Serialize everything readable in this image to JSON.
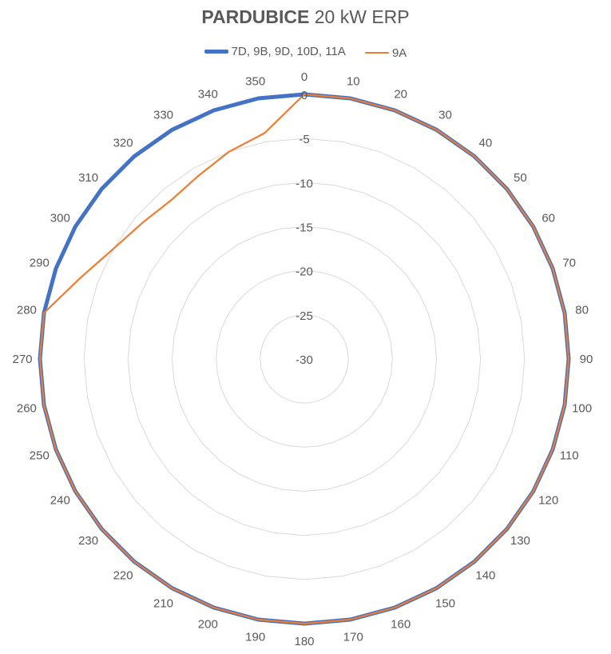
{
  "chart_data": {
    "type": "radar",
    "title_bold": "PARDUBICE",
    "title_rest": " 20 kW ERP",
    "angles": [
      0,
      10,
      20,
      30,
      40,
      50,
      60,
      70,
      80,
      90,
      100,
      110,
      120,
      130,
      140,
      150,
      160,
      170,
      180,
      190,
      200,
      210,
      220,
      230,
      240,
      250,
      260,
      270,
      280,
      290,
      300,
      310,
      320,
      330,
      340,
      350
    ],
    "radial_ticks": [
      0,
      -5,
      -10,
      -15,
      -20,
      -25,
      -30
    ],
    "rlim": [
      -30,
      0
    ],
    "grid": true,
    "legend_position": "top",
    "series": [
      {
        "name": "7D, 9B, 9D, 10D, 11A",
        "color": "#4472C4",
        "values": [
          0,
          0,
          0,
          0,
          0,
          0,
          0,
          0,
          0,
          0,
          0,
          0,
          0,
          0,
          0,
          0,
          0,
          0,
          0,
          0,
          0,
          0,
          0,
          0,
          0,
          0,
          0,
          0,
          0,
          0,
          0,
          0,
          0,
          0,
          0,
          0
        ]
      },
      {
        "name": "9A",
        "color": "#ED7D31",
        "values": [
          0,
          0,
          0,
          0,
          0,
          0,
          0,
          0,
          0,
          0,
          0,
          0,
          0,
          0,
          0,
          0,
          0,
          0,
          0,
          0,
          0,
          0,
          0,
          0,
          0,
          0,
          0,
          0,
          0,
          -3,
          -5,
          -6,
          -6.5,
          -6,
          -5,
          -4
        ]
      }
    ]
  }
}
